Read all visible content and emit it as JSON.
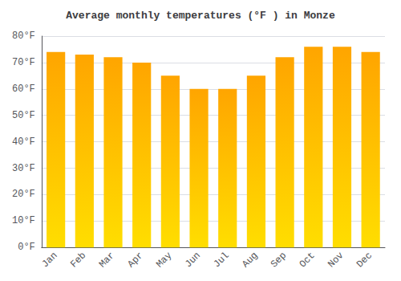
{
  "chart_data": {
    "type": "bar",
    "title": "Average monthly temperatures (°F ) in Monze",
    "categories": [
      "Jan",
      "Feb",
      "Mar",
      "Apr",
      "May",
      "Jun",
      "Jul",
      "Aug",
      "Sep",
      "Oct",
      "Nov",
      "Dec"
    ],
    "values": [
      74,
      73,
      72,
      70,
      65,
      60,
      60,
      65,
      72,
      76,
      76,
      74
    ],
    "color": "#FFA500",
    "ylim": [
      0,
      80
    ],
    "yticks": [
      {
        "value": 0,
        "label": "0°F"
      },
      {
        "value": 10,
        "label": "10°F"
      },
      {
        "value": 20,
        "label": "20°F"
      },
      {
        "value": 30,
        "label": "30°F"
      },
      {
        "value": 40,
        "label": "40°F"
      },
      {
        "value": 50,
        "label": "50°F"
      },
      {
        "value": 60,
        "label": "60°F"
      },
      {
        "value": 70,
        "label": "70°F"
      },
      {
        "value": 80,
        "label": "80°F"
      }
    ],
    "grid": true
  }
}
